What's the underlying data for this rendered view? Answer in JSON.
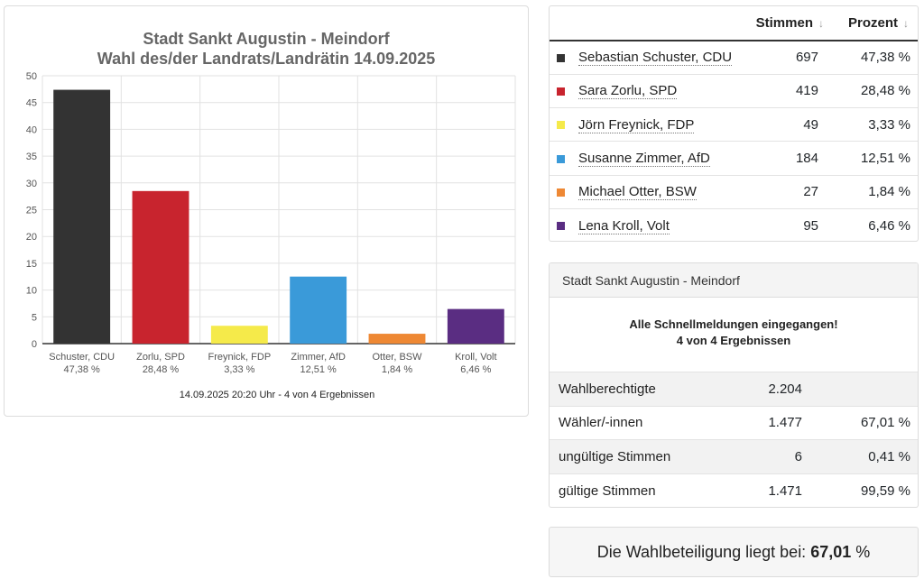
{
  "chart_data": {
    "type": "bar",
    "title": [
      "Stadt Sankt Augustin - Meindorf",
      "Wahl des/der Landrats/Landrätin 14.09.2025"
    ],
    "categories": [
      "Schuster, CDU",
      "Zorlu, SPD",
      "Freynick, FDP",
      "Zimmer, AfD",
      "Otter, BSW",
      "Kroll, Volt"
    ],
    "percent_labels": [
      "47,38 %",
      "28,48 %",
      "3,33 %",
      "12,51 %",
      "1,84 %",
      "6,46 %"
    ],
    "values": [
      47.38,
      28.48,
      3.33,
      12.51,
      1.84,
      6.46
    ],
    "colors": [
      "#333333",
      "#c8242e",
      "#f5ea4a",
      "#3a9ad9",
      "#ee8834",
      "#5a2d82"
    ],
    "ylim": [
      0,
      50
    ],
    "yticks": [
      0,
      5,
      10,
      15,
      20,
      25,
      30,
      35,
      40,
      45,
      50
    ],
    "grid": true,
    "xlabel": "",
    "ylabel": "",
    "footer": "14.09.2025 20:20 Uhr - 4 von 4 Ergebnissen"
  },
  "results": {
    "headers": {
      "votes": "Stimmen",
      "percent": "Prozent",
      "sort_icon": "↓"
    },
    "rows": [
      {
        "name": "Sebastian Schuster, CDU",
        "votes": "697",
        "percent": "47,38 %",
        "color": "#333333"
      },
      {
        "name": "Sara Zorlu, SPD",
        "votes": "419",
        "percent": "28,48 %",
        "color": "#c8242e"
      },
      {
        "name": "Jörn Freynick, FDP",
        "votes": "49",
        "percent": "3,33 %",
        "color": "#f5ea4a"
      },
      {
        "name": "Susanne Zimmer, AfD",
        "votes": "184",
        "percent": "12,51 %",
        "color": "#3a9ad9"
      },
      {
        "name": "Michael Otter, BSW",
        "votes": "27",
        "percent": "1,84 %",
        "color": "#ee8834"
      },
      {
        "name": "Lena Kroll, Volt",
        "votes": "95",
        "percent": "6,46 %",
        "color": "#5a2d82"
      }
    ]
  },
  "summary": {
    "title": "Stadt Sankt Augustin - Meindorf",
    "note_line1": "Alle Schnellmeldungen eingegangen!",
    "note_line2": "4 von 4 Ergebnissen",
    "rows": [
      {
        "label": "Wahlberechtigte",
        "value": "2.204",
        "percent": ""
      },
      {
        "label": "Wähler/-innen",
        "value": "1.477",
        "percent": "67,01 %"
      },
      {
        "label": "ungültige Stimmen",
        "value": "6",
        "percent": "0,41 %"
      },
      {
        "label": "gültige Stimmen",
        "value": "1.471",
        "percent": "99,59 %"
      }
    ]
  },
  "turnout": {
    "prefix": "Die Wahlbeteiligung liegt bei:",
    "value": "67,01",
    "suffix": "%"
  }
}
